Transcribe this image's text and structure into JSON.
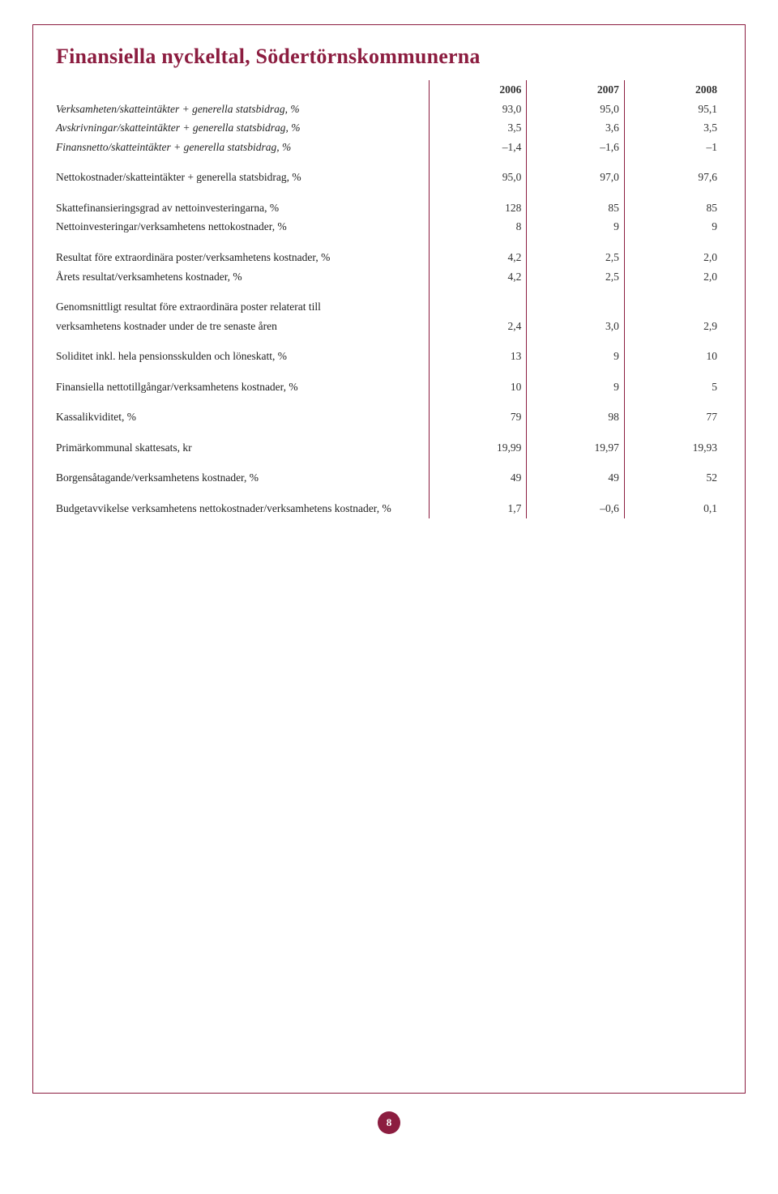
{
  "title": "Finansiella nyckeltal, Södertörnskommunerna",
  "headers": {
    "col1": "2006",
    "col2": "2007",
    "col3": "2008"
  },
  "rows": {
    "r1": {
      "label": "Verksamheten/skatteintäkter + generella statsbidrag, %",
      "c1": "93,0",
      "c2": "95,0",
      "c3": "95,1"
    },
    "r2": {
      "label": "Avskrivningar/skatteintäkter + generella statsbidrag, %",
      "c1": "3,5",
      "c2": "3,6",
      "c3": "3,5"
    },
    "r3": {
      "label": "Finansnetto/skatteintäkter + generella statsbidrag, %",
      "c1": "–1,4",
      "c2": "–1,6",
      "c3": "–1"
    },
    "r4": {
      "label": "Nettokostnader/skatteintäkter + generella statsbidrag, %",
      "c1": "95,0",
      "c2": "97,0",
      "c3": "97,6"
    },
    "r5": {
      "label": "Skattefinansieringsgrad av nettoinvesteringarna, %",
      "c1": "128",
      "c2": "85",
      "c3": "85"
    },
    "r6": {
      "label": "Nettoinvesteringar/verksamhetens nettokostnader, %",
      "c1": "8",
      "c2": "9",
      "c3": "9"
    },
    "r7": {
      "label": "Resultat före extraordinära poster/verksamhetens kostnader, %",
      "c1": "4,2",
      "c2": "2,5",
      "c3": "2,0"
    },
    "r8": {
      "label": "Årets resultat/verksamhetens kostnader, %",
      "c1": "4,2",
      "c2": "2,5",
      "c3": "2,0"
    },
    "r9a": {
      "label": "Genomsnittligt resultat före extraordinära poster relaterat till"
    },
    "r9b": {
      "label": "verksamhetens kostnader under de tre senaste åren",
      "c1": "2,4",
      "c2": "3,0",
      "c3": "2,9"
    },
    "r10": {
      "label": "Soliditet inkl. hela pensionsskulden och löneskatt, %",
      "c1": "13",
      "c2": "9",
      "c3": "10"
    },
    "r11": {
      "label": "Finansiella nettotillgångar/verksamhetens kostnader, %",
      "c1": "10",
      "c2": "9",
      "c3": "5"
    },
    "r12": {
      "label": "Kassalikviditet, %",
      "c1": "79",
      "c2": "98",
      "c3": "77"
    },
    "r13": {
      "label": "Primärkommunal skattesats, kr",
      "c1": "19,99",
      "c2": "19,97",
      "c3": "19,93"
    },
    "r14": {
      "label": "Borgensåtagande/verksamhetens kostnader, %",
      "c1": "49",
      "c2": "49",
      "c3": "52"
    },
    "r15": {
      "label": "Budgetavvikelse verksamhetens nettokostnader/verksamhetens kostnader, %",
      "c1": "1,7",
      "c2": "–0,6",
      "c3": "0,1"
    }
  },
  "page_number": "8",
  "colors": {
    "accent": "#8c1d40",
    "text": "#333333",
    "background": "#ffffff"
  }
}
